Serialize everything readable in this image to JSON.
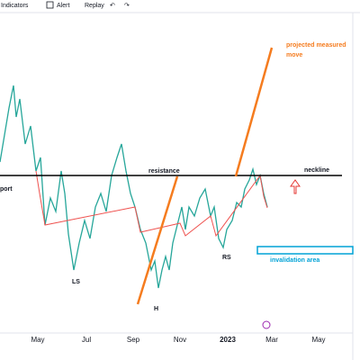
{
  "toolbar": {
    "items": [
      "Indicators",
      "Alert",
      "Replay"
    ]
  },
  "x_axis": {
    "labels": [
      "May",
      "Jul",
      "Sep",
      "Nov",
      "2023",
      "Mar",
      "May"
    ]
  },
  "annotations": {
    "resistance": "resistance",
    "neckline": "neckline",
    "support": "port",
    "left_shoulder": "LS",
    "head": "H",
    "right_shoulder": "RS",
    "projection": [
      "projected measured",
      "move"
    ],
    "invalidation": "invalidation area"
  }
}
